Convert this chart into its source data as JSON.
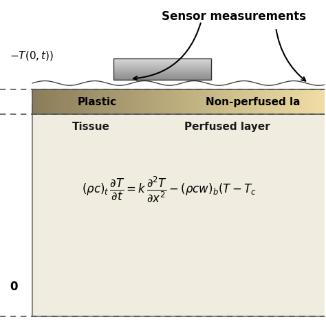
{
  "bg_color": "#ffffff",
  "tissue_bg": "#f0ede0",
  "dashed_color": "#555555",
  "title_sensor": "Sensor measurements",
  "label_plastic": "Plastic",
  "label_nonperfused": "Non-perfused la",
  "label_tissue": "Tissue",
  "label_perfused": "Perfused layer",
  "figsize": [
    4.74,
    4.74
  ],
  "dpi": 100
}
